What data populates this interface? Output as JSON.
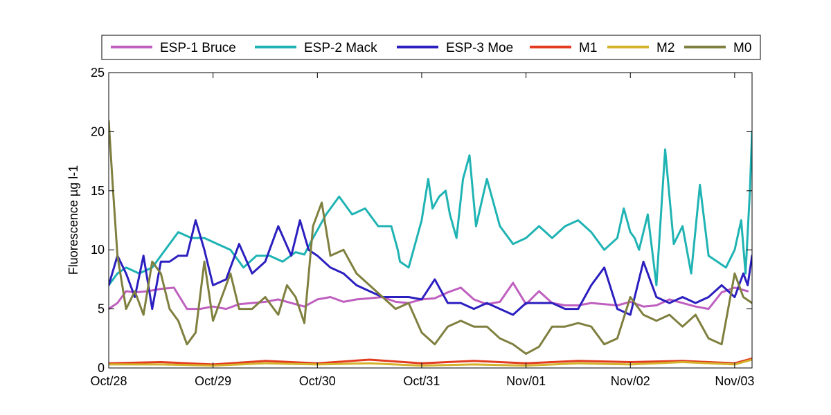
{
  "chart_data": {
    "type": "line",
    "title": "",
    "xlabel": "",
    "ylabel": "Fluorescence µg l-1",
    "xlim": [
      "2013-10-28T00:00",
      "2013-11-03T04:00"
    ],
    "ylim": [
      0,
      25
    ],
    "x_ticks": [
      {
        "x": "2013-10-28T00:00",
        "label": "Oct/28"
      },
      {
        "x": "2013-10-29T00:00",
        "label": "Oct/29"
      },
      {
        "x": "2013-10-30T00:00",
        "label": "Oct/30"
      },
      {
        "x": "2013-10-31T00:00",
        "label": "Oct/31"
      },
      {
        "x": "2013-11-01T00:00",
        "label": "Nov/01"
      },
      {
        "x": "2013-11-02T00:00",
        "label": "Nov/02"
      },
      {
        "x": "2013-11-03T00:00",
        "label": "Nov/03"
      }
    ],
    "y_ticks": [
      "0",
      "5",
      "10",
      "15",
      "20",
      "25"
    ],
    "grid": false,
    "legend": "top, horizontal, outside plot",
    "series": [
      {
        "name": "ESP-1 Bruce",
        "color": "#bf5fbf",
        "x": [
          "2013-10-28T00:00",
          "2013-10-28T02:00",
          "2013-10-28T04:00",
          "2013-10-28T06:00",
          "2013-10-28T09:00",
          "2013-10-28T12:00",
          "2013-10-28T15:00",
          "2013-10-28T18:00",
          "2013-10-28T21:00",
          "2013-10-29T00:00",
          "2013-10-29T03:00",
          "2013-10-29T06:00",
          "2013-10-29T09:00",
          "2013-10-29T12:00",
          "2013-10-29T15:00",
          "2013-10-29T18:00",
          "2013-10-29T21:00",
          "2013-10-30T00:00",
          "2013-10-30T03:00",
          "2013-10-30T06:00",
          "2013-10-30T09:00",
          "2013-10-30T12:00",
          "2013-10-30T15:00",
          "2013-10-30T18:00",
          "2013-10-30T21:00",
          "2013-10-31T00:00",
          "2013-10-31T03:00",
          "2013-10-31T06:00",
          "2013-10-31T09:00",
          "2013-10-31T12:00",
          "2013-10-31T15:00",
          "2013-10-31T18:00",
          "2013-10-31T21:00",
          "2013-11-01T00:00",
          "2013-11-01T03:00",
          "2013-11-01T06:00",
          "2013-11-01T09:00",
          "2013-11-01T12:00",
          "2013-11-01T15:00",
          "2013-11-01T18:00",
          "2013-11-01T21:00",
          "2013-11-02T00:00",
          "2013-11-02T03:00",
          "2013-11-02T06:00",
          "2013-11-02T09:00",
          "2013-11-02T12:00",
          "2013-11-02T15:00",
          "2013-11-02T18:00",
          "2013-11-02T21:00",
          "2013-11-03T00:00",
          "2013-11-03T03:00"
        ],
        "y": [
          5.0,
          5.5,
          6.5,
          6.4,
          6.5,
          6.7,
          6.8,
          5.0,
          5.0,
          5.2,
          5.0,
          5.4,
          5.5,
          5.6,
          5.8,
          5.5,
          5.2,
          5.8,
          6.0,
          5.6,
          5.8,
          5.9,
          6.0,
          5.6,
          5.5,
          5.8,
          5.9,
          6.4,
          6.8,
          5.8,
          5.4,
          5.6,
          7.2,
          5.4,
          6.5,
          5.5,
          5.3,
          5.3,
          5.5,
          5.4,
          5.3,
          5.6,
          5.2,
          5.3,
          5.8,
          5.5,
          5.2,
          5.0,
          6.4,
          6.8,
          6.5
        ]
      },
      {
        "name": "ESP-2 Mack",
        "color": "#1fb3b3",
        "x": [
          "2013-10-28T00:00",
          "2013-10-28T02:00",
          "2013-10-28T04:00",
          "2013-10-28T07:00",
          "2013-10-28T10:00",
          "2013-10-28T13:00",
          "2013-10-28T16:00",
          "2013-10-28T19:00",
          "2013-10-28T22:00",
          "2013-10-29T01:00",
          "2013-10-29T04:00",
          "2013-10-29T07:00",
          "2013-10-29T10:00",
          "2013-10-29T13:00",
          "2013-10-29T16:00",
          "2013-10-29T19:00",
          "2013-10-29T21:00",
          "2013-10-29T23:00",
          "2013-10-30T02:00",
          "2013-10-30T05:00",
          "2013-10-30T08:00",
          "2013-10-30T11:00",
          "2013-10-30T14:00",
          "2013-10-30T17:00",
          "2013-10-30T18:30",
          "2013-10-30T19:00",
          "2013-10-30T21:00",
          "2013-10-31T00:00",
          "2013-10-31T01:30",
          "2013-10-31T02:30",
          "2013-10-31T04:00",
          "2013-10-31T05:30",
          "2013-10-31T06:30",
          "2013-10-31T08:00",
          "2013-10-31T09:30",
          "2013-10-31T11:00",
          "2013-10-31T12:30",
          "2013-10-31T15:00",
          "2013-10-31T18:00",
          "2013-10-31T21:00",
          "2013-11-01T00:00",
          "2013-11-01T03:00",
          "2013-11-01T06:00",
          "2013-11-01T09:00",
          "2013-11-01T12:00",
          "2013-11-01T15:00",
          "2013-11-01T18:00",
          "2013-11-01T21:00",
          "2013-11-01T22:30",
          "2013-11-02T00:00",
          "2013-11-02T01:00",
          "2013-11-02T02:00",
          "2013-11-02T04:00",
          "2013-11-02T06:00",
          "2013-11-02T08:00",
          "2013-11-02T10:00",
          "2013-11-02T12:00",
          "2013-11-02T14:00",
          "2013-11-02T16:00",
          "2013-11-02T18:00",
          "2013-11-02T20:00",
          "2013-11-02T22:00",
          "2013-11-03T00:00",
          "2013-11-03T01:30",
          "2013-11-03T02:30",
          "2013-11-03T03:30",
          "2013-11-03T04:00"
        ],
        "y": [
          7.0,
          8.0,
          8.5,
          8.0,
          8.5,
          10.0,
          11.5,
          11.0,
          11.0,
          10.5,
          10.0,
          8.5,
          9.5,
          9.5,
          9.0,
          9.8,
          9.6,
          11.0,
          13.0,
          14.5,
          13.0,
          13.5,
          12.0,
          12.0,
          10.0,
          9.0,
          8.5,
          12.5,
          16.0,
          13.5,
          14.5,
          15.0,
          13.0,
          11.0,
          16.0,
          18.0,
          12.0,
          16.0,
          12.0,
          10.5,
          11.0,
          12.0,
          11.0,
          12.0,
          12.5,
          11.5,
          10.0,
          11.0,
          13.5,
          11.5,
          11.0,
          10.0,
          13.0,
          7.0,
          18.5,
          10.5,
          12.0,
          8.0,
          15.5,
          9.5,
          9.0,
          8.5,
          10.0,
          12.5,
          8.0,
          15.0,
          20.0
        ]
      },
      {
        "name": "ESP-3 Moe",
        "color": "#2b1fbf",
        "x": [
          "2013-10-28T00:00",
          "2013-10-28T02:00",
          "2013-10-28T04:00",
          "2013-10-28T06:00",
          "2013-10-28T08:00",
          "2013-10-28T10:00",
          "2013-10-28T12:00",
          "2013-10-28T14:00",
          "2013-10-28T16:00",
          "2013-10-28T18:00",
          "2013-10-28T20:00",
          "2013-10-28T22:00",
          "2013-10-29T00:00",
          "2013-10-29T03:00",
          "2013-10-29T06:00",
          "2013-10-29T09:00",
          "2013-10-29T12:00",
          "2013-10-29T15:00",
          "2013-10-29T18:00",
          "2013-10-29T20:00",
          "2013-10-29T22:00",
          "2013-10-30T00:00",
          "2013-10-30T03:00",
          "2013-10-30T06:00",
          "2013-10-30T09:00",
          "2013-10-30T12:00",
          "2013-10-30T15:00",
          "2013-10-30T18:00",
          "2013-10-30T21:00",
          "2013-10-31T00:00",
          "2013-10-31T03:00",
          "2013-10-31T06:00",
          "2013-10-31T09:00",
          "2013-10-31T12:00",
          "2013-10-31T15:00",
          "2013-10-31T18:00",
          "2013-10-31T21:00",
          "2013-11-01T00:00",
          "2013-11-01T03:00",
          "2013-11-01T06:00",
          "2013-11-01T09:00",
          "2013-11-01T12:00",
          "2013-11-01T15:00",
          "2013-11-01T18:00",
          "2013-11-01T21:00",
          "2013-11-02T00:00",
          "2013-11-02T03:00",
          "2013-11-02T06:00",
          "2013-11-02T09:00",
          "2013-11-02T12:00",
          "2013-11-02T15:00",
          "2013-11-02T18:00",
          "2013-11-02T21:00",
          "2013-11-03T00:00",
          "2013-11-03T02:00",
          "2013-11-03T03:00",
          "2013-11-03T04:00"
        ],
        "y": [
          7.0,
          9.5,
          8.0,
          6.0,
          9.5,
          5.0,
          9.0,
          9.0,
          9.5,
          9.5,
          12.5,
          10.0,
          7.0,
          7.5,
          10.5,
          8.0,
          9.0,
          12.0,
          9.5,
          12.5,
          10.0,
          9.5,
          8.5,
          8.0,
          7.0,
          6.5,
          6.0,
          6.0,
          6.0,
          5.8,
          7.5,
          5.5,
          5.5,
          5.0,
          5.5,
          5.0,
          4.5,
          5.5,
          5.5,
          5.5,
          5.0,
          5.0,
          7.0,
          8.5,
          5.0,
          4.5,
          9.0,
          6.0,
          5.5,
          6.0,
          5.5,
          6.0,
          7.0,
          6.0,
          8.0,
          7.0,
          9.5
        ]
      },
      {
        "name": "M1",
        "color": "#e23b1f",
        "x": [
          "2013-10-28T00:00",
          "2013-10-28T12:00",
          "2013-10-29T00:00",
          "2013-10-29T12:00",
          "2013-10-30T00:00",
          "2013-10-30T12:00",
          "2013-10-31T00:00",
          "2013-10-31T12:00",
          "2013-11-01T00:00",
          "2013-11-01T12:00",
          "2013-11-02T00:00",
          "2013-11-02T12:00",
          "2013-11-03T00:00",
          "2013-11-03T04:00"
        ],
        "y": [
          0.4,
          0.5,
          0.3,
          0.6,
          0.4,
          0.7,
          0.4,
          0.6,
          0.4,
          0.6,
          0.5,
          0.6,
          0.4,
          0.8
        ]
      },
      {
        "name": "M2",
        "color": "#d4b22b",
        "x": [
          "2013-10-28T00:00",
          "2013-10-28T12:00",
          "2013-10-29T00:00",
          "2013-10-29T12:00",
          "2013-10-30T00:00",
          "2013-10-30T12:00",
          "2013-10-31T00:00",
          "2013-10-31T12:00",
          "2013-11-01T00:00",
          "2013-11-01T12:00",
          "2013-11-02T00:00",
          "2013-11-02T12:00",
          "2013-11-03T00:00",
          "2013-11-03T04:00"
        ],
        "y": [
          0.3,
          0.3,
          0.2,
          0.4,
          0.3,
          0.4,
          0.2,
          0.3,
          0.2,
          0.4,
          0.3,
          0.5,
          0.3,
          0.7
        ]
      },
      {
        "name": "M0",
        "color": "#7f7f3f",
        "x": [
          "2013-10-28T00:00",
          "2013-10-28T01:00",
          "2013-10-28T02:00",
          "2013-10-28T04:00",
          "2013-10-28T06:00",
          "2013-10-28T08:00",
          "2013-10-28T10:00",
          "2013-10-28T12:00",
          "2013-10-28T14:00",
          "2013-10-28T16:00",
          "2013-10-28T18:00",
          "2013-10-28T20:00",
          "2013-10-28T22:00",
          "2013-10-29T00:00",
          "2013-10-29T02:00",
          "2013-10-29T04:00",
          "2013-10-29T06:00",
          "2013-10-29T09:00",
          "2013-10-29T12:00",
          "2013-10-29T15:00",
          "2013-10-29T17:00",
          "2013-10-29T19:00",
          "2013-10-29T21:00",
          "2013-10-29T23:00",
          "2013-10-30T01:00",
          "2013-10-30T03:00",
          "2013-10-30T06:00",
          "2013-10-30T09:00",
          "2013-10-30T12:00",
          "2013-10-30T15:00",
          "2013-10-30T18:00",
          "2013-10-30T21:00",
          "2013-10-31T00:00",
          "2013-10-31T03:00",
          "2013-10-31T06:00",
          "2013-10-31T09:00",
          "2013-10-31T12:00",
          "2013-10-31T15:00",
          "2013-10-31T18:00",
          "2013-10-31T21:00",
          "2013-11-01T00:00",
          "2013-11-01T03:00",
          "2013-11-01T06:00",
          "2013-11-01T09:00",
          "2013-11-01T12:00",
          "2013-11-01T15:00",
          "2013-11-01T18:00",
          "2013-11-01T21:00",
          "2013-11-02T00:00",
          "2013-11-02T03:00",
          "2013-11-02T06:00",
          "2013-11-02T09:00",
          "2013-11-02T12:00",
          "2013-11-02T15:00",
          "2013-11-02T18:00",
          "2013-11-02T21:00",
          "2013-11-03T00:00",
          "2013-11-03T02:00",
          "2013-11-03T04:00"
        ],
        "y": [
          20.9,
          15.0,
          9.5,
          5.0,
          6.5,
          4.5,
          9.0,
          8.0,
          5.0,
          4.0,
          2.0,
          3.0,
          9.0,
          4.0,
          6.0,
          8.0,
          5.0,
          5.0,
          6.0,
          4.5,
          7.0,
          6.0,
          3.8,
          12.0,
          14.0,
          9.5,
          10.0,
          8.0,
          7.0,
          6.0,
          5.0,
          5.5,
          3.0,
          2.0,
          3.5,
          4.0,
          3.5,
          3.5,
          2.5,
          2.0,
          1.2,
          1.8,
          3.5,
          3.5,
          3.8,
          3.5,
          2.0,
          2.5,
          6.0,
          4.5,
          4.0,
          4.5,
          3.5,
          4.5,
          2.5,
          2.0,
          8.0,
          6.0,
          5.5
        ]
      }
    ]
  }
}
